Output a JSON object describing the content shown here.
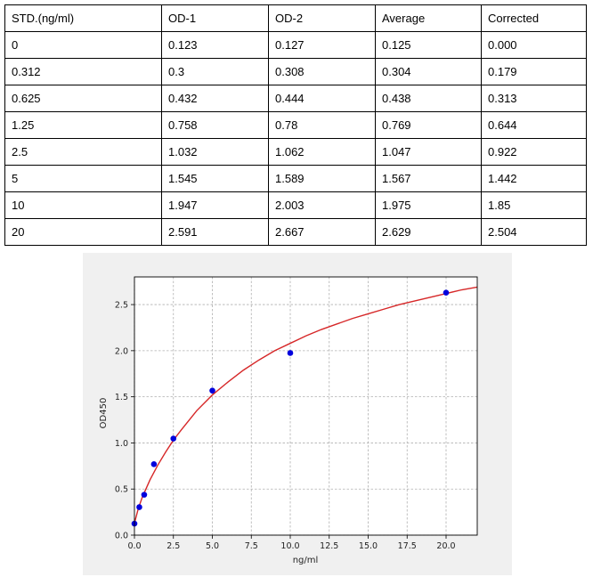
{
  "table": {
    "columns": [
      "STD.(ng/ml)",
      "OD-1",
      "OD-2",
      "Average",
      "Corrected"
    ],
    "rows": [
      [
        "0",
        "0.123",
        "0.127",
        "0.125",
        "0.000"
      ],
      [
        "0.312",
        "0.3",
        "0.308",
        "0.304",
        "0.179"
      ],
      [
        "0.625",
        "0.432",
        "0.444",
        "0.438",
        "0.313"
      ],
      [
        "1.25",
        "0.758",
        "0.78",
        "0.769",
        "0.644"
      ],
      [
        "2.5",
        "1.032",
        "1.062",
        "1.047",
        "0.922"
      ],
      [
        "5",
        "1.545",
        "1.589",
        "1.567",
        "1.442"
      ],
      [
        "10",
        "1.947",
        "2.003",
        "1.975",
        "1.85"
      ],
      [
        "20",
        "2.591",
        "2.667",
        "2.629",
        "2.504"
      ]
    ]
  },
  "chart_data": {
    "type": "scatter",
    "xlabel": "ng/ml",
    "ylabel": "OD450",
    "xlim": [
      0,
      22
    ],
    "ylim": [
      0,
      2.8
    ],
    "xticks": [
      0,
      2.5,
      5,
      7.5,
      10,
      12.5,
      15,
      17.5,
      20
    ],
    "xtick_labels": [
      "0.0",
      "2.5",
      "5.0",
      "7.5",
      "10.0",
      "12.5",
      "15.0",
      "17.5",
      "20.0"
    ],
    "yticks": [
      0,
      0.5,
      1,
      1.5,
      2,
      2.5
    ],
    "ytick_labels": [
      "0.0",
      "0.5",
      "1.0",
      "1.5",
      "2.0",
      "2.5"
    ],
    "grid": true,
    "points": {
      "x": [
        0,
        0.312,
        0.625,
        1.25,
        2.5,
        5,
        10,
        20
      ],
      "y": [
        0.125,
        0.304,
        0.438,
        0.769,
        1.047,
        1.567,
        1.975,
        2.629
      ]
    },
    "fit_curve": {
      "x": [
        0,
        0.25,
        0.5,
        1,
        1.5,
        2,
        2.5,
        3,
        4,
        5,
        6,
        7,
        8,
        9,
        10,
        11,
        12,
        13,
        14,
        15,
        16,
        17,
        18,
        19,
        20,
        21,
        22
      ],
      "y": [
        0.13,
        0.29,
        0.41,
        0.6,
        0.76,
        0.9,
        1.03,
        1.14,
        1.35,
        1.52,
        1.66,
        1.79,
        1.9,
        2.0,
        2.08,
        2.16,
        2.23,
        2.29,
        2.35,
        2.4,
        2.45,
        2.5,
        2.54,
        2.58,
        2.62,
        2.66,
        2.69
      ]
    },
    "colors": {
      "points": "#0000dd",
      "curve": "#d62728"
    }
  }
}
